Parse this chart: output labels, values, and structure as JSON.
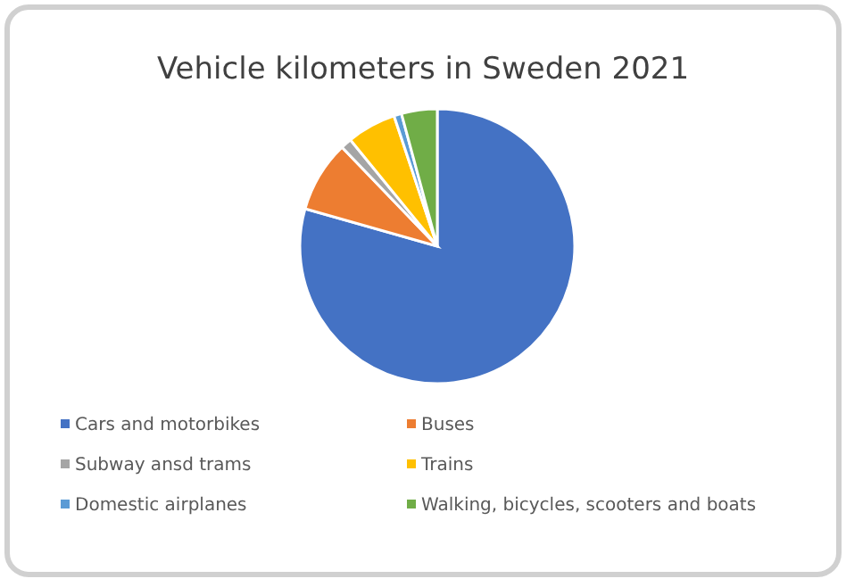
{
  "chart_data": {
    "type": "pie",
    "title": "Vehicle kilometers in Sweden 2021",
    "categories": [
      "Cars and motorbikes",
      "Buses",
      "Subway ansd trams",
      "Trains",
      "Domestic airplanes",
      "Walking, bicycles, scooters and boats"
    ],
    "values": [
      79.4,
      8.4,
      1.3,
      5.8,
      0.9,
      4.2
    ],
    "colors": [
      "#4472c4",
      "#ed7d31",
      "#a5a5a5",
      "#ffc000",
      "#5b9bd5",
      "#70ad47"
    ],
    "legend": "bottom"
  }
}
